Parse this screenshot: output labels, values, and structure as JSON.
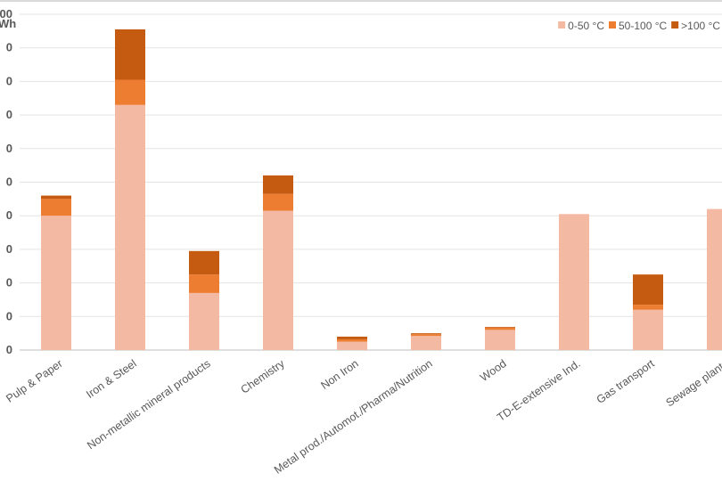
{
  "chart_data": {
    "type": "bar",
    "stacked": true,
    "title": "",
    "ylabel": "Wh",
    "xlabel": "",
    "ylim": [
      0,
      10
    ],
    "y_tick_labels": [
      "0",
      "0",
      "0",
      "0",
      "0",
      "0",
      "0",
      "0",
      "0",
      "0",
      "00"
    ],
    "grid": true,
    "legend_position": "top-right",
    "categories": [
      "Pulp & Paper",
      "Iron & Steel",
      "Non-metallic mineral products",
      "Chemistry",
      "Non Iron",
      "Metal prod./Automot./Pharma/Nutrition",
      "Wood",
      "TD-E-extensive Ind.",
      "Gas transport",
      "Sewage plants"
    ],
    "series": [
      {
        "name": "0-50 °C",
        "color": "#F4B9A3",
        "values": [
          4.0,
          7.3,
          1.7,
          4.15,
          0.25,
          0.42,
          0.6,
          4.05,
          1.2,
          4.2
        ]
      },
      {
        "name": "50-100 °C",
        "color": "#ED7D31",
        "values": [
          0.5,
          0.75,
          0.55,
          0.5,
          0.07,
          0.05,
          0.07,
          0,
          0.15,
          0
        ]
      },
      {
        "name": ">100 °C",
        "color": "#C55A11",
        "values": [
          0.1,
          1.5,
          0.7,
          0.55,
          0.08,
          0.03,
          0.02,
          0,
          0.9,
          0
        ]
      }
    ]
  }
}
